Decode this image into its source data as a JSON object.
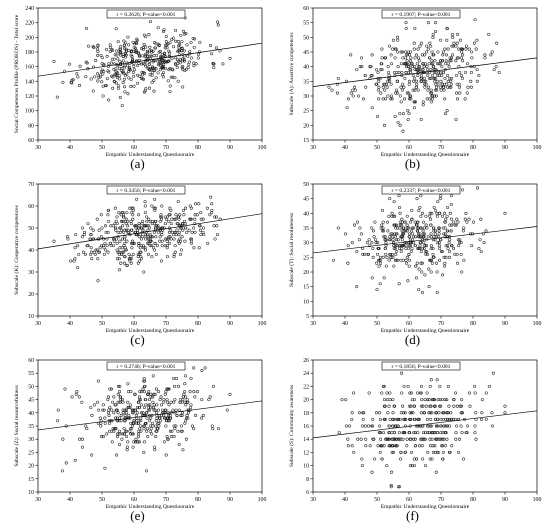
{
  "chart_data": [
    {
      "type": "scatter",
      "panel_label": "(a)",
      "annotation": "r = 0.2626; P-value<0.001",
      "xlabel": "Empathic Understanding Questionnaire",
      "ylabel": "Social Competences Profile (PROKOS) - Total score",
      "xlim": [
        30,
        100
      ],
      "ylim": [
        60,
        240
      ],
      "xticks": [
        30,
        40,
        50,
        60,
        70,
        80,
        90,
        100
      ],
      "yticks": [
        60,
        80,
        100,
        120,
        140,
        160,
        180,
        200,
        220,
        240
      ],
      "fit": {
        "x": [
          30,
          100
        ],
        "y": [
          147,
          192
        ]
      },
      "seed": 11,
      "n": 420,
      "cx": 63,
      "sx": 10,
      "slope": 0.64,
      "intercept": 128,
      "sd": 19,
      "step": 0,
      "xmin": 35,
      "xmax": 90
    },
    {
      "type": "scatter",
      "panel_label": "(b)",
      "annotation": "r = 0.1907; P-value<0.001",
      "xlabel": "Empathic Understanding Questionnaire",
      "ylabel": "Subscale (A): Assertive competences",
      "xlim": [
        30,
        100
      ],
      "ylim": [
        15,
        60
      ],
      "xticks": [
        30,
        40,
        50,
        60,
        70,
        80,
        90,
        100
      ],
      "yticks": [
        15,
        20,
        25,
        30,
        35,
        40,
        45,
        50,
        55,
        60
      ],
      "fit": {
        "x": [
          30,
          100
        ],
        "y": [
          33.2,
          43
        ]
      },
      "seed": 23,
      "n": 400,
      "cx": 63,
      "sx": 10,
      "slope": 0.14,
      "intercept": 29,
      "sd": 6.5,
      "step": 1,
      "xmin": 35,
      "xmax": 90
    },
    {
      "type": "scatter",
      "panel_label": "(c)",
      "annotation": "r = 0.3456; P-value<0.001",
      "xlabel": "Empathic Understanding Questionnaire",
      "ylabel": "Subscale (K): Cooperative competences",
      "xlim": [
        30,
        100
      ],
      "ylim": [
        10,
        70
      ],
      "xticks": [
        30,
        40,
        50,
        60,
        70,
        80,
        90,
        100
      ],
      "yticks": [
        10,
        20,
        30,
        40,
        50,
        60,
        70
      ],
      "fit": {
        "x": [
          30,
          100
        ],
        "y": [
          40.5,
          56.5
        ]
      },
      "seed": 37,
      "n": 420,
      "cx": 63,
      "sx": 10,
      "slope": 0.23,
      "intercept": 33.6,
      "sd": 6.5,
      "step": 1,
      "xmin": 35,
      "xmax": 90
    },
    {
      "type": "scatter",
      "panel_label": "(d)",
      "annotation": "r = 0.2337; P-value<0.001",
      "xlabel": "Empathic Understanding Questionnaire",
      "ylabel": "Subscale (T): Social resoluteness",
      "xlim": [
        30,
        100
      ],
      "ylim": [
        5,
        50
      ],
      "xticks": [
        30,
        40,
        50,
        60,
        70,
        80,
        90,
        100
      ],
      "yticks": [
        5,
        10,
        15,
        20,
        25,
        30,
        35,
        40,
        45,
        50
      ],
      "fit": {
        "x": [
          30,
          100
        ],
        "y": [
          26.5,
          35.5
        ]
      },
      "seed": 53,
      "n": 400,
      "cx": 63,
      "sx": 10,
      "slope": 0.13,
      "intercept": 22.6,
      "sd": 6.2,
      "step": 1,
      "xmin": 35,
      "xmax": 90
    },
    {
      "type": "scatter",
      "panel_label": "(e)",
      "annotation": "r = 0.2746; P-value<0.001",
      "xlabel": "Empathic Understanding Questionnaire",
      "ylabel": "Subscale (Z): Social resourcefulness",
      "xlim": [
        30,
        100
      ],
      "ylim": [
        10,
        60
      ],
      "xticks": [
        30,
        40,
        50,
        60,
        70,
        80,
        90,
        100
      ],
      "yticks": [
        10,
        15,
        20,
        25,
        30,
        35,
        40,
        45,
        50,
        55,
        60
      ],
      "fit": {
        "x": [
          30,
          100
        ],
        "y": [
          33.5,
          44.5
        ]
      },
      "seed": 71,
      "n": 400,
      "cx": 63,
      "sx": 10,
      "slope": 0.16,
      "intercept": 28.8,
      "sd": 6.5,
      "step": 1,
      "xmin": 35,
      "xmax": 90
    },
    {
      "type": "scatter",
      "panel_label": "(f)",
      "annotation": "r = 0.1856; P-value<0.001",
      "xlabel": "Empathic Understanding Questionnaire",
      "ylabel": "Subscale (S): Community awareness",
      "xlim": [
        30,
        100
      ],
      "ylim": [
        6,
        26
      ],
      "xticks": [
        30,
        40,
        50,
        60,
        70,
        80,
        90,
        100
      ],
      "yticks": [
        6,
        8,
        10,
        12,
        14,
        16,
        18,
        20,
        22,
        24,
        26
      ],
      "fit": {
        "x": [
          30,
          100
        ],
        "y": [
          14.2,
          18.3
        ]
      },
      "seed": 89,
      "n": 380,
      "cx": 63,
      "sx": 10,
      "slope": 0.058,
      "intercept": 12.5,
      "sd": 3.2,
      "step": 1,
      "xmin": 35,
      "xmax": 90
    }
  ]
}
